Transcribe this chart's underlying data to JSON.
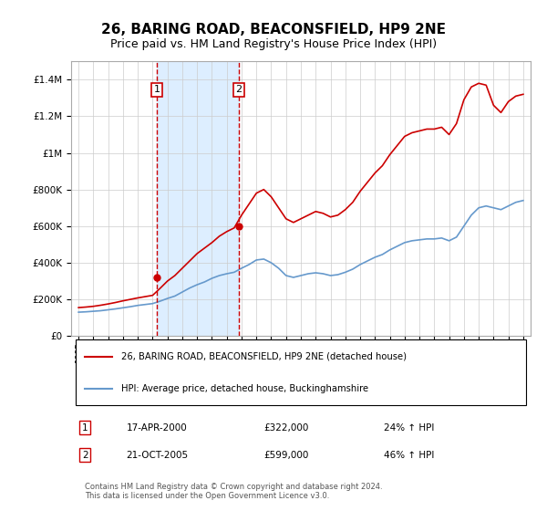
{
  "title": "26, BARING ROAD, BEACONSFIELD, HP9 2NE",
  "subtitle": "Price paid vs. HM Land Registry's House Price Index (HPI)",
  "legend_line1": "26, BARING ROAD, BEACONSFIELD, HP9 2NE (detached house)",
  "legend_line2": "HPI: Average price, detached house, Buckinghamshire",
  "transaction1_label": "1",
  "transaction1_date": "17-APR-2000",
  "transaction1_price": "£322,000",
  "transaction1_hpi": "24% ↑ HPI",
  "transaction2_label": "2",
  "transaction2_date": "21-OCT-2005",
  "transaction2_price": "£599,000",
  "transaction2_hpi": "46% ↑ HPI",
  "footer": "Contains HM Land Registry data © Crown copyright and database right 2024.\nThis data is licensed under the Open Government Licence v3.0.",
  "vline1_year": 2000.29,
  "vline2_year": 2005.8,
  "ylim": [
    0,
    1500000
  ],
  "xlim_start": 1994.5,
  "xlim_end": 2025.5,
  "red_color": "#cc0000",
  "blue_color": "#6699cc",
  "shade_color": "#ddeeff",
  "grid_color": "#cccccc",
  "background_color": "#ffffff",
  "hpi_years": [
    1995,
    1995.5,
    1996,
    1996.5,
    1997,
    1997.5,
    1998,
    1998.5,
    1999,
    1999.5,
    2000,
    2000.5,
    2001,
    2001.5,
    2002,
    2002.5,
    2003,
    2003.5,
    2004,
    2004.5,
    2005,
    2005.5,
    2006,
    2006.5,
    2007,
    2007.5,
    2008,
    2008.5,
    2009,
    2009.5,
    2010,
    2010.5,
    2011,
    2011.5,
    2012,
    2012.5,
    2013,
    2013.5,
    2014,
    2014.5,
    2015,
    2015.5,
    2016,
    2016.5,
    2017,
    2017.5,
    2018,
    2018.5,
    2019,
    2019.5,
    2020,
    2020.5,
    2021,
    2021.5,
    2022,
    2022.5,
    2023,
    2023.5,
    2024,
    2024.5,
    2025
  ],
  "hpi_values": [
    130000,
    132000,
    135000,
    138000,
    143000,
    148000,
    154000,
    160000,
    167000,
    172000,
    177000,
    190000,
    205000,
    218000,
    240000,
    262000,
    280000,
    295000,
    315000,
    330000,
    340000,
    348000,
    370000,
    390000,
    415000,
    420000,
    400000,
    370000,
    330000,
    320000,
    330000,
    340000,
    345000,
    340000,
    330000,
    335000,
    348000,
    365000,
    390000,
    410000,
    430000,
    445000,
    470000,
    490000,
    510000,
    520000,
    525000,
    530000,
    530000,
    535000,
    520000,
    540000,
    600000,
    660000,
    700000,
    710000,
    700000,
    690000,
    710000,
    730000,
    740000
  ],
  "price_years": [
    1995,
    1995.5,
    1996,
    1996.5,
    1997,
    1997.5,
    1998,
    1998.5,
    1999,
    1999.5,
    2000,
    2000.5,
    2001,
    2001.5,
    2002,
    2002.5,
    2003,
    2003.5,
    2004,
    2004.5,
    2005,
    2005.5,
    2006,
    2006.5,
    2007,
    2007.5,
    2008,
    2008.5,
    2009,
    2009.5,
    2010,
    2010.5,
    2011,
    2011.5,
    2012,
    2012.5,
    2013,
    2013.5,
    2014,
    2014.5,
    2015,
    2015.5,
    2016,
    2016.5,
    2017,
    2017.5,
    2018,
    2018.5,
    2019,
    2019.5,
    2020,
    2020.5,
    2021,
    2021.5,
    2022,
    2022.5,
    2023,
    2023.5,
    2024,
    2024.5,
    2025
  ],
  "price_values": [
    155000,
    158000,
    162000,
    168000,
    175000,
    183000,
    192000,
    200000,
    208000,
    215000,
    222000,
    260000,
    300000,
    330000,
    370000,
    410000,
    450000,
    480000,
    510000,
    545000,
    570000,
    590000,
    660000,
    720000,
    780000,
    800000,
    760000,
    700000,
    640000,
    620000,
    640000,
    660000,
    680000,
    670000,
    650000,
    660000,
    690000,
    730000,
    790000,
    840000,
    890000,
    930000,
    990000,
    1040000,
    1090000,
    1110000,
    1120000,
    1130000,
    1130000,
    1140000,
    1100000,
    1160000,
    1290000,
    1360000,
    1380000,
    1370000,
    1260000,
    1220000,
    1280000,
    1310000,
    1320000
  ]
}
